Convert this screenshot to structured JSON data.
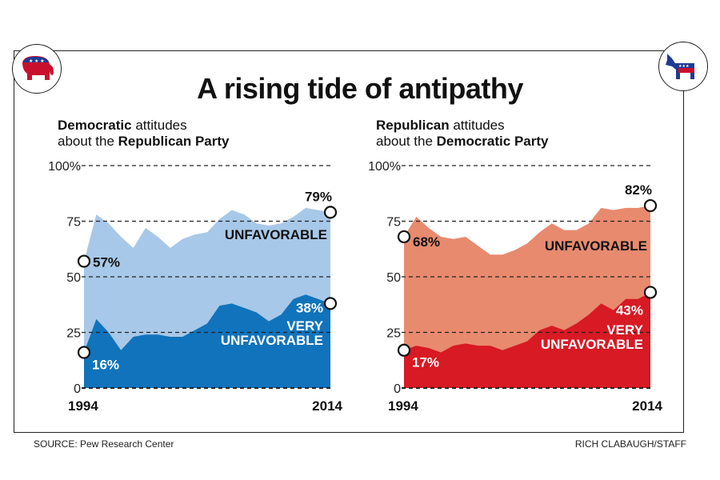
{
  "title": "A rising tide of antipathy",
  "source": "SOURCE: Pew Research Center",
  "credit": "RICH CLABAUGH/STAFF",
  "logos": {
    "left": "republican-elephant-icon",
    "right": "democratic-donkey-icon"
  },
  "chart_data": [
    {
      "type": "area",
      "subtitle_bold1": "Democratic",
      "subtitle_rest1": " attitudes",
      "subtitle_rest2": "about the ",
      "subtitle_bold2": "Republican Party",
      "x_ticks": [
        "1994",
        "2014"
      ],
      "y_ticks": [
        "100%",
        "75",
        "50",
        "25",
        "0"
      ],
      "ylim": [
        0,
        100
      ],
      "xlim": [
        1994,
        2014
      ],
      "grid": true,
      "colors": {
        "unfavorable": "#a7c8e8",
        "very_unfavorable": "#1173bb"
      },
      "x": [
        1994,
        1995,
        1996,
        1997,
        1998,
        1999,
        2000,
        2001,
        2002,
        2003,
        2004,
        2005,
        2006,
        2007,
        2008,
        2009,
        2010,
        2011,
        2012,
        2013,
        2014
      ],
      "series": [
        {
          "name": "UNFAVORABLE",
          "values": [
            57,
            78,
            74,
            68,
            63,
            72,
            68,
            63,
            67,
            69,
            70,
            76,
            80,
            78,
            74,
            73,
            74,
            77,
            81,
            80,
            79
          ]
        },
        {
          "name": "VERY UNFAVORABLE",
          "values": [
            16,
            31,
            25,
            17,
            23,
            24,
            24,
            23,
            23,
            26,
            29,
            37,
            38,
            36,
            34,
            30,
            33,
            40,
            42,
            40,
            38
          ]
        }
      ],
      "annotations": {
        "start_unfav": "57%",
        "end_unfav": "79%",
        "start_very": "16%",
        "end_very": "38%",
        "label_unfav": "UNFAVORABLE",
        "label_very1": "VERY",
        "label_very2": "UNFAVORABLE"
      }
    },
    {
      "type": "area",
      "subtitle_bold1": "Republican",
      "subtitle_rest1": " attitudes",
      "subtitle_rest2": "about the ",
      "subtitle_bold2": "Democratic Party",
      "x_ticks": [
        "1994",
        "2014"
      ],
      "y_ticks": [
        "100%",
        "75",
        "50",
        "25",
        "0"
      ],
      "ylim": [
        0,
        100
      ],
      "xlim": [
        1994,
        2014
      ],
      "grid": true,
      "colors": {
        "unfavorable": "#e88a6e",
        "very_unfavorable": "#d71a24"
      },
      "x": [
        1994,
        1995,
        1996,
        1997,
        1998,
        1999,
        2000,
        2001,
        2002,
        2003,
        2004,
        2005,
        2006,
        2007,
        2008,
        2009,
        2010,
        2011,
        2012,
        2013,
        2014
      ],
      "series": [
        {
          "name": "UNFAVORABLE",
          "values": [
            68,
            77,
            72,
            68,
            67,
            68,
            64,
            60,
            60,
            62,
            65,
            70,
            74,
            71,
            71,
            74,
            81,
            80,
            81,
            81,
            82
          ]
        },
        {
          "name": "VERY UNFAVORABLE",
          "values": [
            17,
            19,
            18,
            16,
            19,
            20,
            19,
            19,
            17,
            19,
            21,
            26,
            28,
            26,
            29,
            33,
            38,
            35,
            40,
            40,
            43
          ]
        }
      ],
      "annotations": {
        "start_unfav": "68%",
        "end_unfav": "82%",
        "start_very": "17%",
        "end_very": "43%",
        "label_unfav": "UNFAVORABLE",
        "label_very1": "VERY",
        "label_very2": "UNFAVORABLE"
      }
    }
  ]
}
